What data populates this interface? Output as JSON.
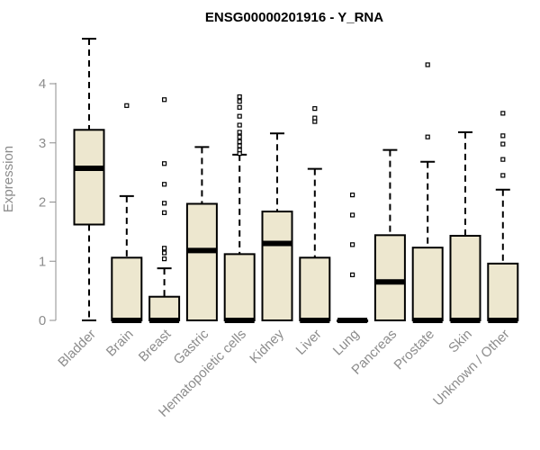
{
  "chart_data": {
    "type": "boxplot",
    "title": "ENSG00000201916 - Y_RNA",
    "xlabel": "",
    "ylabel": "Expression",
    "ylim": [
      0,
      4.8
    ],
    "yticks": [
      0,
      1,
      2,
      3,
      4
    ],
    "grid": false,
    "colors": {
      "box_fill": "#ede7cf",
      "box_stroke": "#000000",
      "axis": "#8c8c8c"
    },
    "categories": [
      "Bladder",
      "Brain",
      "Breast",
      "Gastric",
      "Hematopoietic cells",
      "Kidney",
      "Liver",
      "Lung",
      "Pancreas",
      "Prostate",
      "Skin",
      "Unknown / Other"
    ],
    "boxes": [
      {
        "category": "Bladder",
        "min": 0,
        "q1": 1.62,
        "median": 2.57,
        "q3": 3.22,
        "max": 4.76,
        "outliers": []
      },
      {
        "category": "Brain",
        "min": 0,
        "q1": 0,
        "median": 0,
        "q3": 1.06,
        "max": 2.1,
        "outliers": [
          3.63
        ]
      },
      {
        "category": "Breast",
        "min": 0,
        "q1": 0,
        "median": 0,
        "q3": 0.4,
        "max": 0.88,
        "outliers": [
          1.04,
          1.14,
          1.22,
          1.82,
          1.98,
          2.3,
          2.65,
          3.73
        ]
      },
      {
        "category": "Gastric",
        "min": 0,
        "q1": 0,
        "median": 1.18,
        "q3": 1.97,
        "max": 2.93,
        "outliers": []
      },
      {
        "category": "Hematopoietic cells",
        "min": 0,
        "q1": 0,
        "median": 0,
        "q3": 1.12,
        "max": 2.8,
        "outliers": [
          2.82,
          2.88,
          2.95,
          3.02,
          3.1,
          3.18,
          3.3,
          3.45,
          3.6,
          3.7,
          3.78
        ]
      },
      {
        "category": "Kidney",
        "min": 0,
        "q1": 0,
        "median": 1.3,
        "q3": 1.84,
        "max": 3.16,
        "outliers": []
      },
      {
        "category": "Liver",
        "min": 0,
        "q1": 0,
        "median": 0,
        "q3": 1.06,
        "max": 2.56,
        "outliers": [
          3.36,
          3.42,
          3.58
        ]
      },
      {
        "category": "Lung",
        "min": 0,
        "q1": 0,
        "median": 0,
        "q3": 0,
        "max": 0,
        "outliers": [
          0.77,
          1.28,
          1.78,
          2.12
        ]
      },
      {
        "category": "Pancreas",
        "min": 0,
        "q1": 0,
        "median": 0.65,
        "q3": 1.44,
        "max": 2.88,
        "outliers": []
      },
      {
        "category": "Prostate",
        "min": 0,
        "q1": 0,
        "median": 0,
        "q3": 1.23,
        "max": 2.68,
        "outliers": [
          3.1,
          4.32
        ]
      },
      {
        "category": "Skin",
        "min": 0,
        "q1": 0,
        "median": 0,
        "q3": 1.43,
        "max": 3.18,
        "outliers": []
      },
      {
        "category": "Unknown / Other",
        "min": 0,
        "q1": 0,
        "median": 0,
        "q3": 0.96,
        "max": 2.21,
        "outliers": [
          2.45,
          2.72,
          2.98,
          3.12,
          3.5
        ]
      }
    ]
  }
}
